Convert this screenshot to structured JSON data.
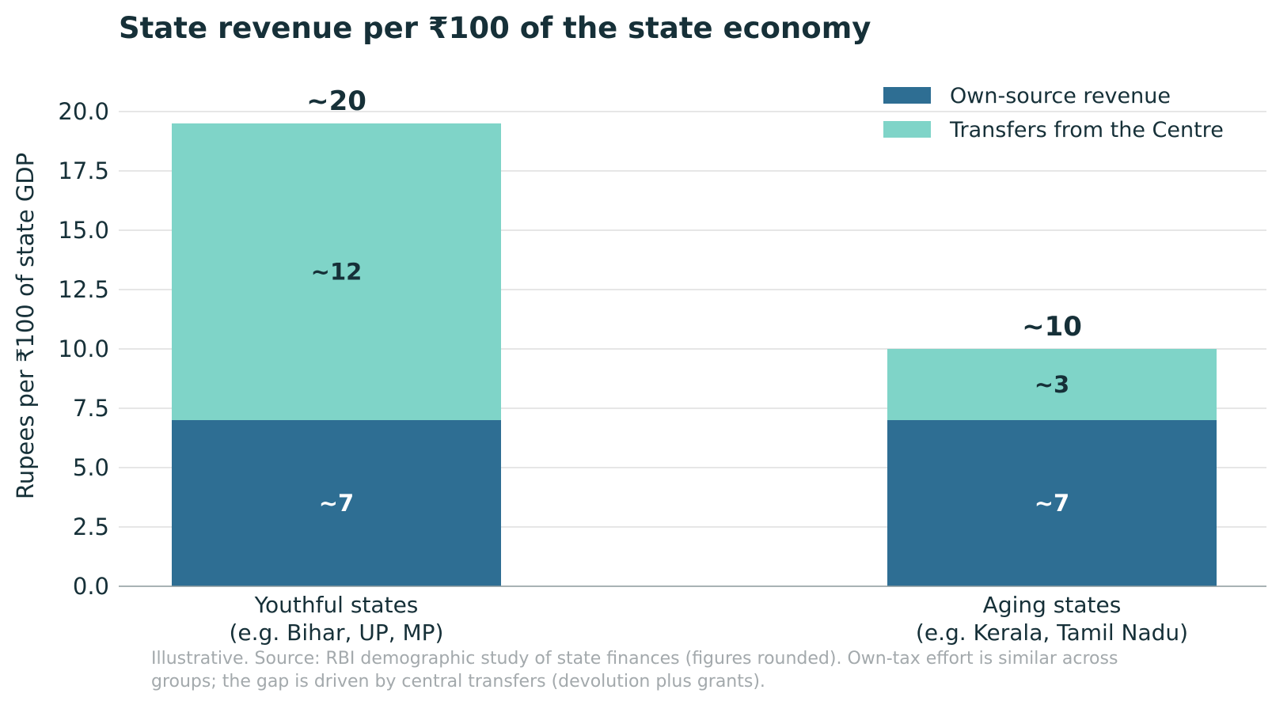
{
  "chart_data": {
    "type": "bar",
    "stacked": true,
    "title": "State revenue per ₹100 of the state economy",
    "xlabel": "",
    "ylabel": "Rupees per ₹100 of state GDP",
    "ylim": [
      0,
      20.5
    ],
    "yticks": [
      "0.0",
      "2.5",
      "5.0",
      "7.5",
      "10.0",
      "12.5",
      "15.0",
      "17.5",
      "20.0"
    ],
    "ytick_values": [
      0,
      2.5,
      5,
      7.5,
      10,
      12.5,
      15,
      17.5,
      20
    ],
    "grid": true,
    "legend_position": "top-right",
    "categories": [
      [
        "Youthful states",
        "(e.g. Bihar, UP, MP)"
      ],
      [
        "Aging states",
        "(e.g. Kerala, Tamil Nadu)"
      ]
    ],
    "series": [
      {
        "name": "Own-source revenue",
        "color": "#2e6e93",
        "values": [
          7,
          7
        ],
        "labels": [
          "~7",
          "~7"
        ],
        "label_color": "#ffffff"
      },
      {
        "name": "Transfers from the Centre",
        "color": "#7fd4c8",
        "values": [
          12.5,
          3
        ],
        "labels": [
          "~12",
          "~3"
        ],
        "label_color": "#163038"
      }
    ],
    "totals": [
      "~20",
      "~10"
    ],
    "note": [
      "Illustrative. Source: RBI demographic study of state finances (figures rounded). Own-tax effort is similar across",
      "groups; the gap is driven by central transfers (devolution plus grants)."
    ]
  }
}
